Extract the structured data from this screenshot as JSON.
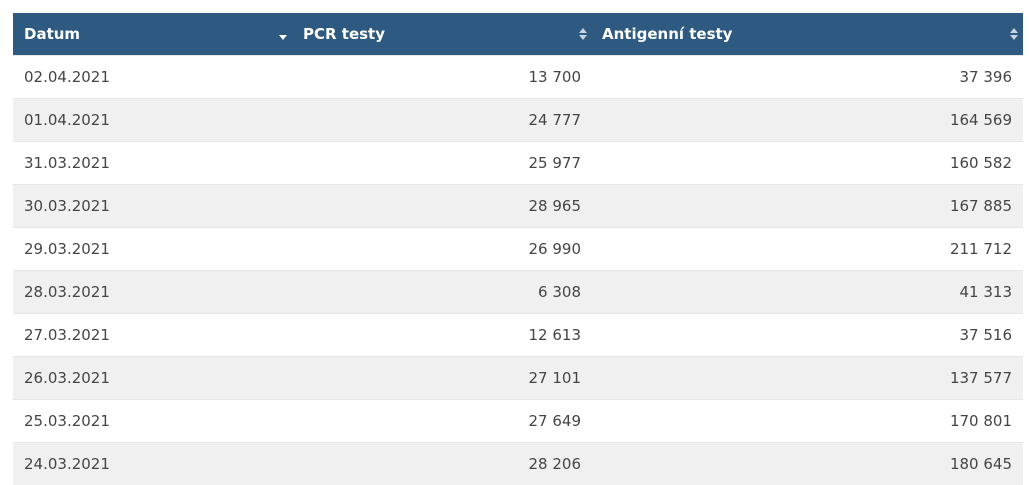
{
  "table": {
    "headers": [
      {
        "label": "Datum",
        "sort": "desc"
      },
      {
        "label": "PCR testy",
        "sort": "none"
      },
      {
        "label": "Antigenní testy",
        "sort": "none"
      }
    ],
    "rows": [
      {
        "date": "02.04.2021",
        "pcr": "13 700",
        "antigen": "37 396"
      },
      {
        "date": "01.04.2021",
        "pcr": "24 777",
        "antigen": "164 569"
      },
      {
        "date": "31.03.2021",
        "pcr": "25 977",
        "antigen": "160 582"
      },
      {
        "date": "30.03.2021",
        "pcr": "28 965",
        "antigen": "167 885"
      },
      {
        "date": "29.03.2021",
        "pcr": "26 990",
        "antigen": "211 712"
      },
      {
        "date": "28.03.2021",
        "pcr": "6 308",
        "antigen": "41 313"
      },
      {
        "date": "27.03.2021",
        "pcr": "12 613",
        "antigen": "37 516"
      },
      {
        "date": "26.03.2021",
        "pcr": "27 101",
        "antigen": "137 577"
      },
      {
        "date": "25.03.2021",
        "pcr": "27 649",
        "antigen": "170 801"
      },
      {
        "date": "24.03.2021",
        "pcr": "28 206",
        "antigen": "180 645"
      }
    ]
  },
  "colors": {
    "header_bg": "#2e5981",
    "header_text": "#ffffff",
    "row_alt_bg": "#f0f0f0",
    "text": "#454545"
  },
  "icons": {
    "sort_desc": "sort-desc-icon",
    "sort_both": "sort-both-icon"
  }
}
